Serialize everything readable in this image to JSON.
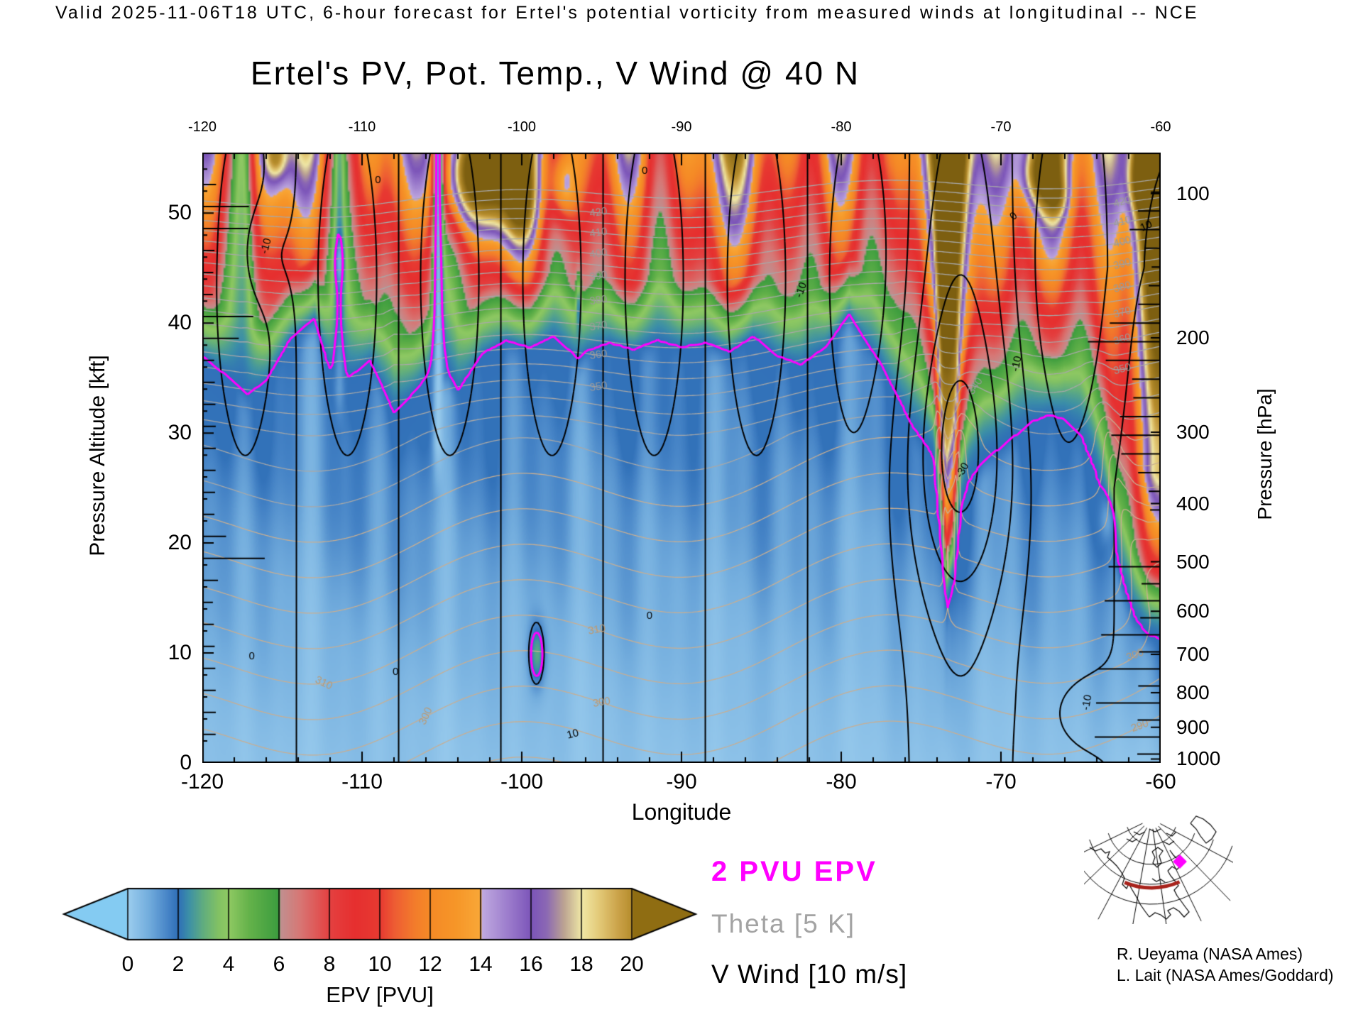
{
  "header": {
    "text": "Valid 2025-11-06T18 UTC, 6-hour forecast for Ertel's potential vorticity from measured winds at longitudinal -- NCE"
  },
  "title": "Ertel's PV, Pot. Temp., V Wind @ 40 N",
  "axes": {
    "x": {
      "label": "Longitude",
      "min": -120,
      "max": -60,
      "major_ticks": [
        -120,
        -110,
        -100,
        -90,
        -80,
        -70,
        -60
      ],
      "minor_step": 2
    },
    "y_left": {
      "label": "Pressure Altitude [kft]",
      "min": 0,
      "max": 55.5,
      "ticks": [
        0,
        10,
        20,
        30,
        40,
        50
      ]
    },
    "y_right": {
      "label": "Pressure [hPa]",
      "ticks": [
        [
          "100",
          51.78
        ],
        [
          "200",
          38.66
        ],
        [
          "300",
          30.07
        ],
        [
          "400",
          23.58
        ],
        [
          "500",
          18.29
        ],
        [
          "600",
          13.8
        ],
        [
          "700",
          9.88
        ],
        [
          "800",
          6.39
        ],
        [
          "900",
          3.24
        ],
        [
          "1000",
          0.36
        ]
      ]
    }
  },
  "colorbar": {
    "label": "EPV [PVU]",
    "ticks": [
      0,
      2,
      4,
      6,
      8,
      10,
      12,
      14,
      16,
      18,
      20
    ],
    "under_color": "#84CBF2",
    "over_color": "#8F6D12",
    "stops": [
      [
        0,
        "#9BCDEE"
      ],
      [
        0.8,
        "#74AEDE"
      ],
      [
        1.6,
        "#4583C6"
      ],
      [
        2,
        "#2F6FB7"
      ],
      [
        2.4,
        "#3C8FA8"
      ],
      [
        3,
        "#62AE7E"
      ],
      [
        3.6,
        "#83C263"
      ],
      [
        4,
        "#8FC963"
      ],
      [
        4.8,
        "#64B24A"
      ],
      [
        6,
        "#3B9C3E"
      ],
      [
        6.05,
        "#C09090"
      ],
      [
        6.8,
        "#D77876"
      ],
      [
        8,
        "#E44040"
      ],
      [
        9,
        "#E62F2F"
      ],
      [
        10,
        "#E73A31"
      ],
      [
        10.6,
        "#EE5E33"
      ],
      [
        11.4,
        "#F37D2B"
      ],
      [
        12,
        "#F58A26"
      ],
      [
        13,
        "#F69628"
      ],
      [
        14,
        "#F9A838"
      ],
      [
        14.05,
        "#BFA9E0"
      ],
      [
        15,
        "#9F80CE"
      ],
      [
        16,
        "#7C55B9"
      ],
      [
        16.6,
        "#8B68B4"
      ],
      [
        17.3,
        "#BCA492"
      ],
      [
        18,
        "#F0E8A6"
      ],
      [
        18.7,
        "#E3C977"
      ],
      [
        19.5,
        "#C9A046"
      ],
      [
        20,
        "#B68D2C"
      ],
      [
        23,
        "#7D5F10"
      ]
    ]
  },
  "legend": [
    {
      "label": "2 PVU EPV",
      "color": "#FF00FF"
    },
    {
      "label": "Theta [5 K]",
      "color": "#A3A3A3"
    },
    {
      "label": "V Wind [10 m/s]",
      "color": "#000000"
    }
  ],
  "credits": [
    "R. Ueyama (NASA Ames)",
    "L. Lait (NASA Ames/Goddard)"
  ],
  "inset_map": {
    "track_color": "#A8231C",
    "marker_color": "#FF00FF"
  },
  "chart_data": {
    "type": "heatmap",
    "subtype": "filled_contour_longitude_altitude_cross_section",
    "title": "Ertel's PV, Pot. Temp., V Wind @ 40 N",
    "x": {
      "name": "Longitude",
      "range": [
        -120,
        -60
      ]
    },
    "y": {
      "name": "Pressure Altitude [kft]",
      "range": [
        0,
        55.5
      ]
    },
    "fill_field": {
      "name": "EPV",
      "units": "PVU",
      "range": [
        0,
        20
      ]
    },
    "overlays": [
      {
        "name": "2 PVU EPV contour",
        "color": "#FF00FF"
      },
      {
        "name": "Theta contours",
        "interval_k": 5,
        "color": "#A8A8A8"
      },
      {
        "name": "V Wind contours",
        "interval_ms": 10,
        "color": "#000000",
        "negative_style": "dashed"
      }
    ],
    "tropopause_2pvu": {
      "lon": [
        -120,
        -118.5,
        -117.2,
        -116,
        -114.5,
        -113,
        -111.9,
        -111.45,
        -111,
        -109.5,
        -108,
        -106.8,
        -105.8,
        -105.25,
        -104.6,
        -104,
        -102.5,
        -101,
        -99.5,
        -98,
        -96.8,
        -96.45,
        -96,
        -94.5,
        -93,
        -91.5,
        -90,
        -88.5,
        -87,
        -85.5,
        -84,
        -82.5,
        -81,
        -79.5,
        -78.5,
        -77.5,
        -76.5,
        -75.5,
        -74.8,
        -74.2,
        -73.8,
        -73.4,
        -73,
        -72.5,
        -72,
        -71,
        -70,
        -69,
        -68,
        -67,
        -66,
        -65,
        -64.2,
        -63.5,
        -63,
        -62.3,
        -61.6,
        -60.8,
        -60
      ],
      "kft": [
        37,
        35.2,
        33.4,
        34.8,
        38.6,
        40.4,
        35.2,
        33.4,
        34.8,
        36.6,
        31.8,
        33.6,
        35.4,
        34.6,
        35.4,
        33.8,
        37.2,
        38.4,
        37.8,
        38.8,
        37.2,
        36.6,
        37.4,
        38.2,
        37.6,
        38.4,
        37.8,
        38.2,
        37.4,
        38.8,
        37,
        36.2,
        37.8,
        40.8,
        38.4,
        36.2,
        33.4,
        30.4,
        29,
        27.6,
        21,
        13.6,
        16,
        23,
        25.5,
        27.5,
        28.6,
        29.8,
        31,
        31.6,
        31.2,
        29.6,
        26.8,
        23.5,
        20,
        16,
        13,
        11.6,
        11.2
      ]
    },
    "features": {
      "stratospheric_low_pv_channels": [
        {
          "lon": -111.45,
          "base_kft": 30,
          "pocket_kft": [
            43,
            48
          ]
        },
        {
          "lon": -105.25,
          "base_kft": 24,
          "reaches_top": true
        }
      ],
      "tropopause_fold": {
        "lon": -73.4,
        "min_kft": 13.6
      },
      "tropospheric_pv_lens": {
        "lon": -99.05,
        "kft": 9.8
      },
      "pvu2_sliver": {
        "lon": -96.45,
        "kft": [
          39,
          44.6
        ]
      },
      "pvu2_loop": {
        "lon": -63.3,
        "kft": 22
      },
      "epv_maxima_gt20": [
        {
          "lon": -103.6,
          "kft": 53.5
        },
        {
          "lon": -101.6,
          "kft": 52.5
        },
        {
          "lon": -100,
          "kft": 51
        },
        {
          "lon": -97.4,
          "kft": 52.5
        },
        {
          "lon": -115.4,
          "kft": 55
        },
        {
          "lon": -67.6,
          "kft": 53.5
        },
        {
          "lon": -66.4,
          "kft": 51.5
        },
        {
          "lon": -61,
          "kft": 53
        },
        {
          "lon": -60.2,
          "kft": 50
        }
      ]
    },
    "theta_labels": [
      {
        "value": 300,
        "lon": -106.0,
        "rot": -65
      },
      {
        "value": 300,
        "lon": -95.0,
        "rot": -10
      },
      {
        "value": 310,
        "lon": -95.3,
        "rot": -10
      },
      {
        "value": 310,
        "lon": -112.4,
        "rot": 25
      },
      {
        "value": 290,
        "lon": -61.3,
        "rot": -20
      },
      {
        "value": 300,
        "lon": -61.6,
        "rot": -20
      },
      {
        "value": 340,
        "lon": -71.6,
        "rot": -55
      },
      {
        "value": 350,
        "lon": -95.2,
        "rot": -8
      },
      {
        "value": 360,
        "lon": -95.2,
        "rot": -8
      },
      {
        "value": 370,
        "lon": -95.2,
        "rot": -8
      },
      {
        "value": 380,
        "lon": -95.2,
        "rot": -8
      },
      {
        "value": 390,
        "lon": -95.2,
        "rot": -8
      },
      {
        "value": 400,
        "lon": -95.2,
        "rot": -8
      },
      {
        "value": 410,
        "lon": -95.2,
        "rot": -8
      },
      {
        "value": 420,
        "lon": -95.2,
        "rot": -8
      },
      {
        "value": 350,
        "lon": -62.4,
        "rot": -15
      },
      {
        "value": 360,
        "lon": -62.4,
        "rot": -15
      },
      {
        "value": 370,
        "lon": -62.4,
        "rot": -15
      },
      {
        "value": 380,
        "lon": -62.4,
        "rot": -15
      },
      {
        "value": 390,
        "lon": -62.4,
        "rot": -15
      },
      {
        "value": 400,
        "lon": -62.4,
        "rot": -15
      },
      {
        "value": 410,
        "lon": -62.4,
        "rot": -15
      },
      {
        "value": 420,
        "lon": -62.4,
        "rot": -15
      }
    ],
    "wind_labels": [
      {
        "text": "0",
        "lon": -109,
        "kft": 53,
        "rot": 0
      },
      {
        "text": "0",
        "lon": -92.3,
        "kft": 53.8,
        "rot": 0
      },
      {
        "text": "0",
        "lon": -69.2,
        "kft": 49.7,
        "rot": -40
      },
      {
        "text": "-10",
        "lon": -116,
        "kft": 47,
        "rot": -75
      },
      {
        "text": "-10",
        "lon": -82.5,
        "kft": 43,
        "rot": -70
      },
      {
        "text": "-10",
        "lon": -69,
        "kft": 36.3,
        "rot": -78
      },
      {
        "text": "-30",
        "lon": -72.4,
        "kft": 26.6,
        "rot": -60
      },
      {
        "text": "10",
        "lon": -96.8,
        "kft": 2.6,
        "rot": -15
      },
      {
        "text": "10",
        "lon": -60.9,
        "kft": 48.8,
        "rot": -25
      },
      {
        "text": "-10",
        "lon": -64.6,
        "kft": 5.5,
        "rot": -80
      },
      {
        "text": "0",
        "lon": -116.9,
        "kft": 9.7,
        "rot": 0
      },
      {
        "text": "0",
        "lon": -107.9,
        "kft": 8.3,
        "rot": 0
      },
      {
        "text": "0",
        "lon": -92,
        "kft": 13.4,
        "rot": 0
      }
    ]
  }
}
